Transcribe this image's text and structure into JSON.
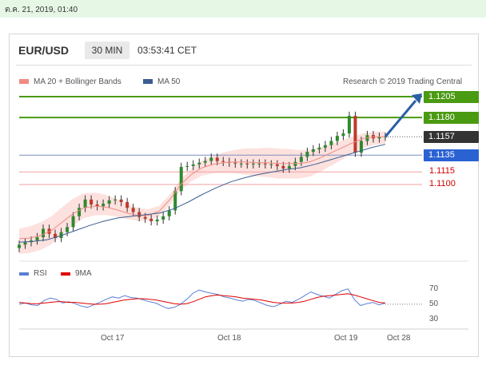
{
  "date_stamp": "ต.ค. 21, 2019, 01:40",
  "header": {
    "pair": "EUR/USD",
    "timeframe": "30 MIN",
    "clock": "03:53:41 CET"
  },
  "legend_main": [
    {
      "label": "MA 20 + Bollinger Bands",
      "color": "#f08a82"
    },
    {
      "label": "MA 50",
      "color": "#3b5e91"
    }
  ],
  "credit": "Research © 2019 Trading Central",
  "legend_rsi": [
    {
      "label": "RSI",
      "color": "#5b7fd6"
    },
    {
      "label": "9MA",
      "color": "#e00000"
    }
  ],
  "price_levels": [
    {
      "label": "1.1205",
      "value": 1.1205,
      "style": "resistance",
      "color": "#4a9a12"
    },
    {
      "label": "1.1180",
      "value": 1.118,
      "style": "resistance",
      "color": "#4a9a12"
    },
    {
      "label": "1.1157",
      "value": 1.1157,
      "style": "current",
      "color": "#333333"
    },
    {
      "label": "1.1135",
      "value": 1.1135,
      "style": "pivot",
      "color": "#2a62d4"
    },
    {
      "label": "1.1115",
      "value": 1.1115,
      "style": "support",
      "color": "#d00000"
    },
    {
      "label": "1.1100",
      "value": 1.11,
      "style": "support",
      "color": "#d00000"
    }
  ],
  "x_ticks": [
    "Oct 17",
    "Oct 18",
    "Oct 19",
    "Oct 28"
  ],
  "rsi_ticks": [
    "70",
    "50",
    "30"
  ],
  "chart_data": {
    "type": "candlestick",
    "instrument": "EUR/USD",
    "interval": "30 MIN",
    "price_range": [
      1.1015,
      1.1225
    ],
    "rsi_range": [
      20,
      85
    ],
    "grid": false,
    "legend_position": "top-left",
    "close_series": [
      1.1028,
      1.1031,
      1.1033,
      1.1037,
      1.1047,
      1.1041,
      1.1036,
      1.1043,
      1.1049,
      1.1062,
      1.1072,
      1.1082,
      1.1076,
      1.1074,
      1.1077,
      1.1081,
      1.1082,
      1.1079,
      1.1072,
      1.1067,
      1.1061,
      1.1059,
      1.1056,
      1.1058,
      1.1062,
      1.1069,
      1.1092,
      1.1121,
      1.1122,
      1.1124,
      1.1126,
      1.1128,
      1.1132,
      1.1128,
      1.1127,
      1.1126,
      1.1125,
      1.1125,
      1.1124,
      1.1125,
      1.1125,
      1.1124,
      1.1124,
      1.1122,
      1.1119,
      1.1122,
      1.1127,
      1.1133,
      1.1139,
      1.1142,
      1.1144,
      1.1147,
      1.1152,
      1.1158,
      1.1161,
      1.1182,
      1.1138,
      1.1152,
      1.1159,
      1.1155,
      1.1157,
      1.1157
    ],
    "ma20": [
      1.1035,
      1.1036,
      1.1039,
      1.1045,
      1.1055,
      1.1065,
      1.1072,
      1.1074,
      1.1073,
      1.107,
      1.1066,
      1.1063,
      1.1063,
      1.1068,
      1.1082,
      1.11,
      1.1112,
      1.112,
      1.1124,
      1.1126,
      1.1127,
      1.1127,
      1.1126,
      1.1126,
      1.1125,
      1.1125,
      1.1125,
      1.1127,
      1.1132,
      1.1138,
      1.1144,
      1.115,
      1.1155,
      1.1157,
      1.1157
    ],
    "ma50": [
      1.1031,
      1.1032,
      1.1034,
      1.1039,
      1.1045,
      1.1051,
      1.1056,
      1.106,
      1.1062,
      1.1064,
      1.1066,
      1.1071,
      1.1079,
      1.1088,
      1.1096,
      1.1103,
      1.1108,
      1.1112,
      1.1115,
      1.1118,
      1.112,
      1.1124,
      1.1129,
      1.1134,
      1.1139,
      1.1144,
      1.1148
    ],
    "rsi": [
      50,
      52,
      49,
      48,
      56,
      60,
      58,
      52,
      54,
      51,
      47,
      45,
      49,
      53,
      58,
      62,
      60,
      64,
      61,
      60,
      57,
      54,
      52,
      47,
      43,
      45,
      50,
      58,
      68,
      73,
      70,
      68,
      66,
      62,
      60,
      57,
      55,
      58,
      56,
      52,
      48,
      46,
      50,
      55,
      53,
      58,
      64,
      70,
      66,
      63,
      60,
      66,
      72,
      75,
      58,
      48,
      51,
      53,
      49,
      52
    ],
    "rsi_ma": [
      53,
      52,
      51,
      51,
      52,
      53,
      54,
      54,
      53,
      53,
      52,
      51,
      50,
      50,
      51,
      53,
      55,
      57,
      58,
      59,
      59,
      58,
      57,
      55,
      53,
      51,
      50,
      51,
      54,
      58,
      62,
      64,
      65,
      64,
      63,
      62,
      60,
      59,
      58,
      57,
      55,
      53,
      52,
      52,
      52,
      53,
      55,
      58,
      61,
      63,
      64,
      65,
      66,
      67,
      65,
      62,
      59,
      56,
      53,
      52
    ],
    "forecast": {
      "direction": "up",
      "target": 1.1205
    }
  }
}
